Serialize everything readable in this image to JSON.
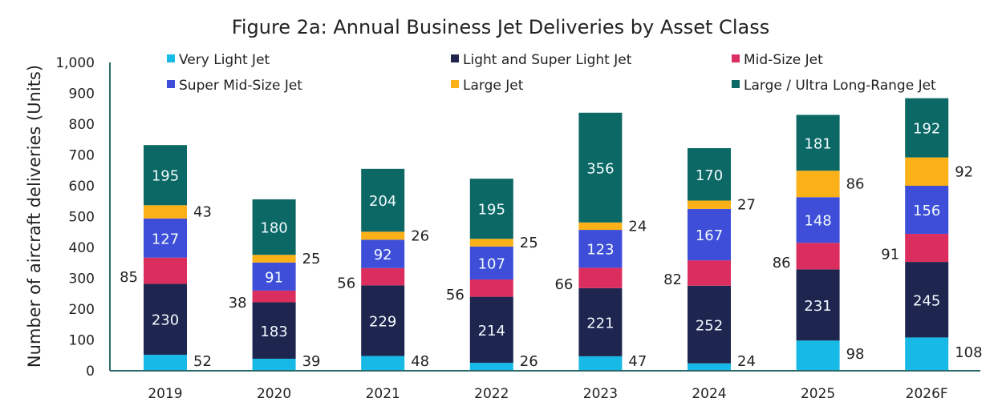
{
  "chart_data": {
    "type": "bar",
    "stacked": true,
    "title": "Figure 2a: Annual Business Jet Deliveries by Asset Class",
    "xlabel": "",
    "ylabel": "Number of aircraft deliveries (Units)",
    "ylim": [
      0,
      1000
    ],
    "yticks": [
      0,
      100,
      200,
      300,
      400,
      500,
      600,
      700,
      800,
      900,
      1000
    ],
    "ytick_labels": [
      "0",
      "100",
      "200",
      "300",
      "400",
      "500",
      "600",
      "700",
      "800",
      "900",
      "1,000"
    ],
    "grid": false,
    "legend_position": "top",
    "categories": [
      "2019",
      "2020",
      "2021",
      "2022",
      "2023",
      "2024",
      "2025",
      "2026F"
    ],
    "series": [
      {
        "name": "Very Light Jet",
        "color": "#17b9e6",
        "label_position": "right",
        "values": [
          52,
          39,
          48,
          26,
          47,
          24,
          98,
          108
        ]
      },
      {
        "name": "Light and Super Light Jet",
        "color": "#1e2650",
        "label_position": "inside",
        "values": [
          230,
          183,
          229,
          214,
          221,
          252,
          231,
          245
        ]
      },
      {
        "name": "Mid-Size Jet",
        "color": "#dc2d5f",
        "label_position": "left",
        "values": [
          85,
          38,
          56,
          56,
          66,
          82,
          86,
          91
        ]
      },
      {
        "name": "Super Mid-Size Jet",
        "color": "#3e4ed8",
        "label_position": "inside",
        "values": [
          127,
          91,
          92,
          107,
          123,
          167,
          148,
          156
        ]
      },
      {
        "name": "Large Jet",
        "color": "#fbb117",
        "label_position": "right",
        "values": [
          43,
          25,
          26,
          25,
          24,
          27,
          86,
          92
        ]
      },
      {
        "name": "Large / Ultra Long-Range Jet",
        "color": "#0b6864",
        "label_position": "inside",
        "values": [
          195,
          180,
          204,
          195,
          356,
          170,
          181,
          192
        ]
      }
    ]
  },
  "colors": {
    "axis": "#2b6a6a",
    "text": "#222222",
    "inside_label": "#f2fbff"
  }
}
